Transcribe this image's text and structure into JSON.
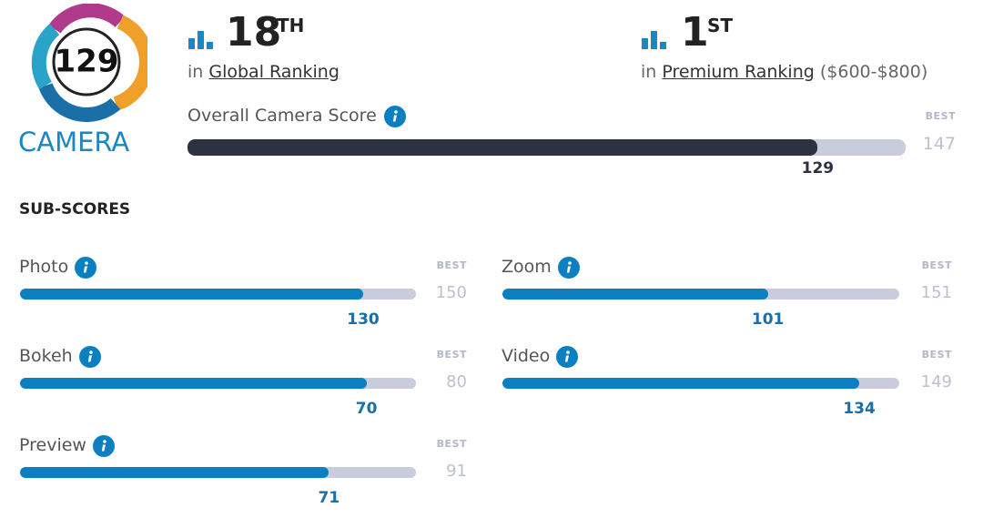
{
  "badge": {
    "score": 129,
    "label": "CAMERA"
  },
  "rankings": [
    {
      "prefix": "in",
      "rank": 18,
      "suffix": "TH",
      "name": "Global Ranking"
    },
    {
      "prefix": "in",
      "rank": 1,
      "suffix": "ST",
      "name": "Premium Ranking",
      "note": "($600-$800)"
    }
  ],
  "best_label": "BEST",
  "overall": {
    "label": "Overall Camera Score",
    "best": 147,
    "score": 129
  },
  "subscores": {
    "title": "SUB-SCORES",
    "items": [
      {
        "label": "Photo",
        "best": 150,
        "score": 130
      },
      {
        "label": "Zoom",
        "best": 151,
        "score": 101
      },
      {
        "label": "Bokeh",
        "best": 80,
        "score": 70
      },
      {
        "label": "Video",
        "best": 149,
        "score": 134
      },
      {
        "label": "Preview",
        "best": 91,
        "score": 71
      }
    ]
  }
}
